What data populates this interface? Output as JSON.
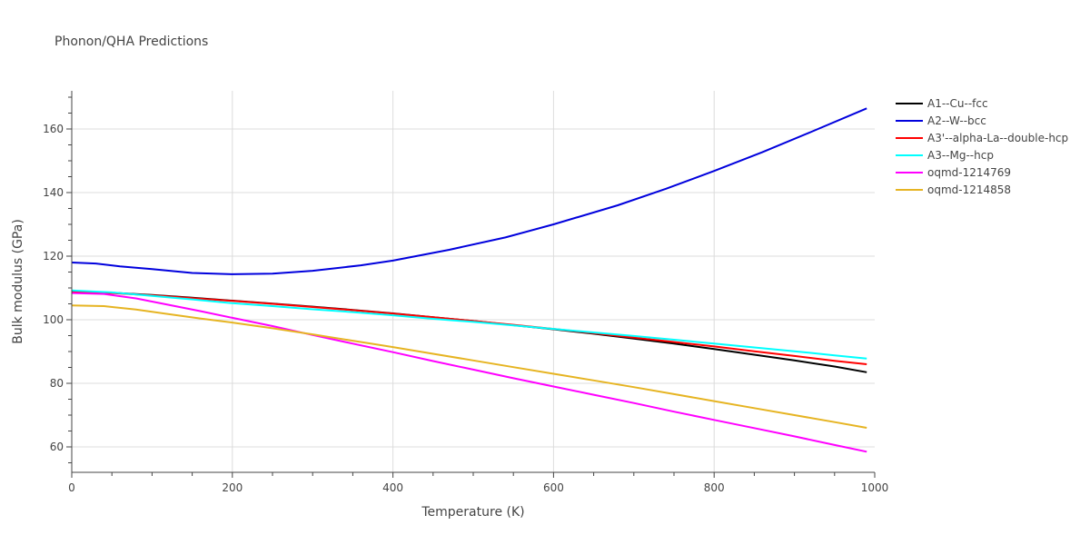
{
  "chart_data": {
    "type": "line",
    "title": "Phonon/QHA Predictions",
    "xlabel": "Temperature (K)",
    "ylabel": "Bulk modulus (GPa)",
    "xlim": [
      0,
      1000
    ],
    "ylim": [
      52,
      172
    ],
    "x_ticks": [
      0,
      200,
      400,
      600,
      800,
      1000
    ],
    "y_ticks": [
      60,
      80,
      100,
      120,
      140,
      160
    ],
    "x_tick_labels": [
      "0",
      "200",
      "400",
      "600",
      "800",
      "1000"
    ],
    "y_tick_labels": [
      "60",
      "80",
      "100",
      "120",
      "140",
      "160"
    ],
    "grid": true,
    "legend_position": "right",
    "series": [
      {
        "name": "A1--Cu--fcc",
        "color": "#000000",
        "x": [
          0,
          50,
          100,
          150,
          200,
          250,
          300,
          350,
          400,
          450,
          500,
          550,
          600,
          650,
          700,
          750,
          800,
          850,
          900,
          950,
          990
        ],
        "y": [
          108.7,
          108.5,
          107.8,
          106.9,
          106.0,
          105.1,
          104.1,
          103.1,
          102.0,
          100.8,
          99.6,
          98.3,
          97.0,
          95.6,
          94.1,
          92.5,
          90.8,
          89.0,
          87.2,
          85.3,
          83.5
        ]
      },
      {
        "name": "A2--W--bcc",
        "color": "#0000dd",
        "x": [
          0,
          30,
          60,
          100,
          150,
          200,
          250,
          300,
          360,
          400,
          470,
          540,
          600,
          680,
          740,
          800,
          860,
          920,
          990
        ],
        "y": [
          118.0,
          117.7,
          116.8,
          115.9,
          114.7,
          114.3,
          114.5,
          115.4,
          117.1,
          118.6,
          122.0,
          125.9,
          130.0,
          136.0,
          141.2,
          146.8,
          152.7,
          159.0,
          166.5
        ]
      },
      {
        "name": "A3'--alpha-La--double-hcp",
        "color": "#ff0000",
        "x": [
          0,
          50,
          100,
          150,
          200,
          250,
          300,
          350,
          400,
          450,
          500,
          550,
          600,
          650,
          700,
          750,
          800,
          850,
          900,
          950,
          990
        ],
        "y": [
          108.6,
          108.4,
          107.7,
          106.8,
          105.9,
          105.0,
          104.0,
          103.0,
          101.9,
          100.8,
          99.6,
          98.4,
          97.1,
          95.8,
          94.4,
          93.0,
          91.6,
          90.1,
          88.6,
          87.1,
          86.0
        ]
      },
      {
        "name": "A3--Mg--hcp",
        "color": "#00ffff",
        "x": [
          0,
          50,
          100,
          150,
          200,
          250,
          300,
          350,
          400,
          450,
          500,
          550,
          600,
          650,
          700,
          750,
          800,
          850,
          900,
          950,
          990
        ],
        "y": [
          109.2,
          108.6,
          107.5,
          106.4,
          105.2,
          104.3,
          103.3,
          102.4,
          101.4,
          100.3,
          99.3,
          98.2,
          97.1,
          96.0,
          94.9,
          93.7,
          92.5,
          91.3,
          90.1,
          88.8,
          87.8
        ]
      },
      {
        "name": "oqmd-1214769",
        "color": "#ff00ff",
        "x": [
          0,
          40,
          80,
          120,
          160,
          200,
          250,
          300,
          350,
          400,
          450,
          500,
          550,
          600,
          650,
          700,
          750,
          800,
          850,
          900,
          950,
          990
        ],
        "y": [
          108.4,
          108.1,
          106.7,
          104.7,
          102.7,
          100.6,
          98.0,
          95.2,
          92.5,
          89.8,
          87.0,
          84.3,
          81.6,
          79.0,
          76.4,
          73.8,
          71.1,
          68.5,
          65.9,
          63.3,
          60.6,
          58.5
        ]
      },
      {
        "name": "oqmd-1214858",
        "color": "#e6b422",
        "x": [
          0,
          40,
          80,
          120,
          160,
          200,
          250,
          300,
          350,
          400,
          450,
          500,
          550,
          600,
          650,
          700,
          750,
          800,
          850,
          900,
          950,
          990
        ],
        "y": [
          104.5,
          104.3,
          103.2,
          101.8,
          100.4,
          99.1,
          97.3,
          95.4,
          93.4,
          91.4,
          89.3,
          87.2,
          85.1,
          83.0,
          80.9,
          78.8,
          76.6,
          74.4,
          72.2,
          70.0,
          67.8,
          66.0
        ]
      }
    ]
  }
}
